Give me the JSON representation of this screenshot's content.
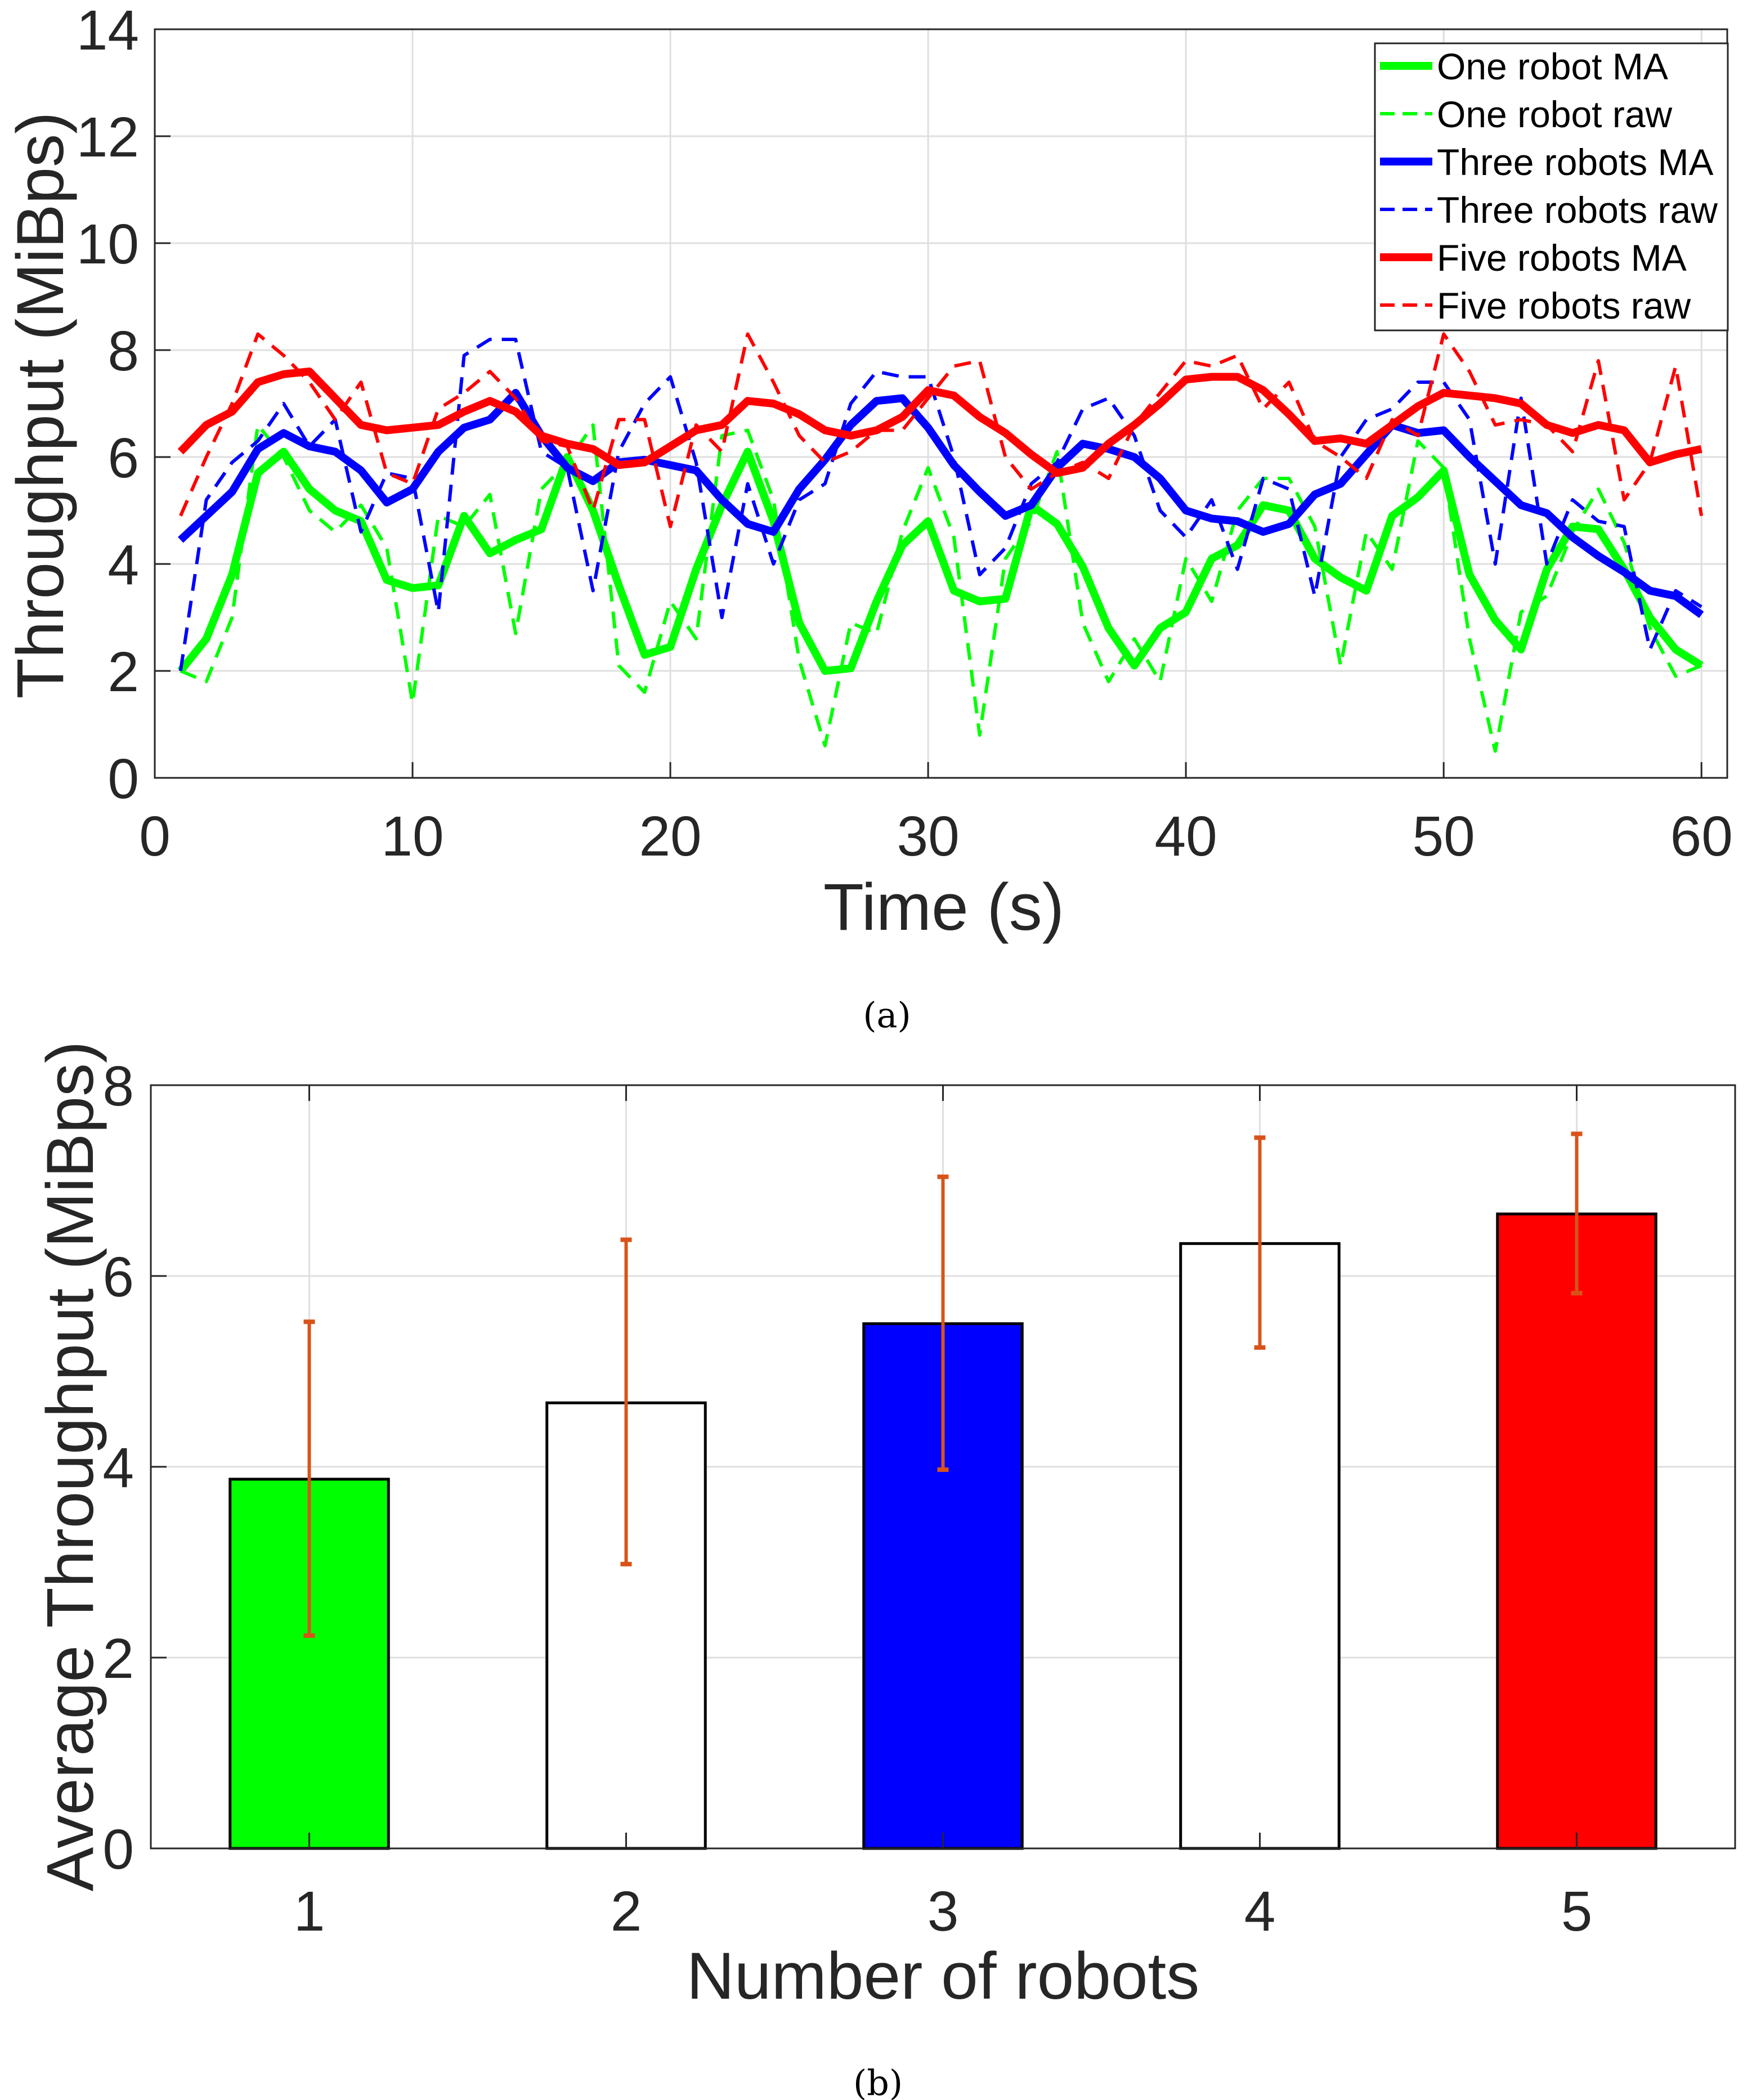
{
  "captions": {
    "a": "(a)",
    "b": "(b)"
  },
  "colors": {
    "green": "#00FF00",
    "blue": "#0000FF",
    "red": "#FF0000",
    "errorbar": "#D95319",
    "grid": "#DFDFDF",
    "axis": "#262626"
  },
  "chart_data": [
    {
      "type": "line",
      "title": "",
      "xlabel": "Time (s)",
      "ylabel": "Throughput (MiBps)",
      "xlim": [
        0,
        61
      ],
      "ylim": [
        0,
        14
      ],
      "xticks": [
        "0",
        "10",
        "20",
        "30",
        "40",
        "50",
        "60"
      ],
      "yticks": [
        "0",
        "2",
        "4",
        "6",
        "8",
        "10",
        "12",
        "14"
      ],
      "grid": true,
      "legend_position": "top-right",
      "x": [
        1,
        2,
        3,
        4,
        5,
        6,
        7,
        8,
        9,
        10,
        11,
        12,
        13,
        14,
        15,
        16,
        17,
        18,
        19,
        20,
        21,
        22,
        23,
        24,
        25,
        26,
        27,
        28,
        29,
        30,
        31,
        32,
        33,
        34,
        35,
        36,
        37,
        38,
        39,
        40,
        41,
        42,
        43,
        44,
        45,
        46,
        47,
        48,
        49,
        50,
        51,
        52,
        53,
        54,
        55,
        56,
        57,
        58,
        59,
        60
      ],
      "series": [
        {
          "name": "One robot MA",
          "color": "#00FF00",
          "style": "solid",
          "values": [
            2.0,
            2.6,
            3.8,
            5.7,
            6.1,
            5.4,
            5.0,
            4.8,
            3.7,
            3.55,
            3.6,
            4.9,
            4.2,
            4.45,
            4.65,
            6.0,
            5.0,
            3.6,
            2.3,
            2.45,
            3.9,
            5.1,
            6.1,
            4.8,
            2.9,
            2.0,
            2.05,
            3.3,
            4.35,
            4.8,
            3.5,
            3.3,
            3.35,
            5.1,
            4.75,
            3.95,
            2.8,
            2.1,
            2.8,
            3.1,
            4.1,
            4.35,
            5.1,
            5.0,
            4.1,
            3.75,
            3.5,
            4.9,
            5.25,
            5.75,
            3.8,
            2.95,
            2.4,
            3.9,
            4.7,
            4.65,
            3.9,
            3.0,
            2.4,
            2.1
          ]
        },
        {
          "name": "One robot raw",
          "color": "#00FF00",
          "style": "dashed",
          "values": [
            2.0,
            1.8,
            3.0,
            6.6,
            6.0,
            5.0,
            4.6,
            5.1,
            4.3,
            1.4,
            4.9,
            4.7,
            5.3,
            2.7,
            5.4,
            5.9,
            6.6,
            2.1,
            1.6,
            3.3,
            2.6,
            6.4,
            6.5,
            5.2,
            2.2,
            0.6,
            2.9,
            2.7,
            4.6,
            5.8,
            4.5,
            0.8,
            4.1,
            4.8,
            6.1,
            2.9,
            1.8,
            2.6,
            1.8,
            4.1,
            3.3,
            5.0,
            5.6,
            5.6,
            4.7,
            2.1,
            4.6,
            3.9,
            6.3,
            5.8,
            2.6,
            0.5,
            3.1,
            3.4,
            4.6,
            5.4,
            4.4,
            2.8,
            1.9,
            2.1
          ]
        },
        {
          "name": "Three robots MA",
          "color": "#0000FF",
          "style": "solid",
          "values": [
            4.45,
            4.9,
            5.35,
            6.15,
            6.45,
            6.2,
            6.1,
            5.75,
            5.15,
            5.4,
            6.1,
            6.55,
            6.7,
            7.2,
            6.4,
            5.8,
            5.55,
            5.9,
            5.95,
            5.85,
            5.75,
            5.2,
            4.75,
            4.6,
            5.4,
            5.95,
            6.6,
            7.05,
            7.1,
            6.55,
            5.85,
            5.35,
            4.9,
            5.1,
            5.8,
            6.25,
            6.15,
            6.0,
            5.6,
            5.0,
            4.85,
            4.8,
            4.6,
            4.75,
            5.3,
            5.5,
            6.05,
            6.6,
            6.45,
            6.5,
            6.0,
            5.55,
            5.1,
            4.95,
            4.5,
            4.15,
            3.85,
            3.5,
            3.4,
            3.05
          ]
        },
        {
          "name": "Three robots raw",
          "color": "#0000FF",
          "style": "dashed",
          "values": [
            2.0,
            5.2,
            5.9,
            6.3,
            7.0,
            6.2,
            6.7,
            4.6,
            5.7,
            5.6,
            3.1,
            7.9,
            8.2,
            8.2,
            6.1,
            5.8,
            3.5,
            6.1,
            7.0,
            7.5,
            5.9,
            3.0,
            5.5,
            4.0,
            5.2,
            5.5,
            7.0,
            7.6,
            7.5,
            7.5,
            6.0,
            3.8,
            4.3,
            5.5,
            5.9,
            6.9,
            7.1,
            6.4,
            5.0,
            4.5,
            5.2,
            3.9,
            5.6,
            5.4,
            3.4,
            6.0,
            6.7,
            6.9,
            7.4,
            7.4,
            6.7,
            4.0,
            7.1,
            4.0,
            5.2,
            4.8,
            4.7,
            2.4,
            3.5,
            3.2
          ]
        },
        {
          "name": "Five robots MA",
          "color": "#FF0000",
          "style": "solid",
          "values": [
            6.1,
            6.6,
            6.85,
            7.4,
            7.55,
            7.6,
            7.1,
            6.6,
            6.5,
            6.55,
            6.6,
            6.85,
            7.05,
            6.85,
            6.4,
            6.25,
            6.15,
            5.85,
            5.9,
            6.2,
            6.5,
            6.6,
            7.05,
            7.0,
            6.8,
            6.5,
            6.4,
            6.5,
            6.75,
            7.25,
            7.15,
            6.75,
            6.45,
            6.05,
            5.7,
            5.8,
            6.25,
            6.6,
            7.0,
            7.45,
            7.5,
            7.5,
            7.25,
            6.8,
            6.3,
            6.35,
            6.25,
            6.6,
            6.95,
            7.2,
            7.15,
            7.1,
            7.0,
            6.6,
            6.45,
            6.6,
            6.5,
            5.9,
            6.05,
            6.15
          ]
        },
        {
          "name": "Five robots raw",
          "color": "#FF0000",
          "style": "dashed",
          "values": [
            4.9,
            6.0,
            7.0,
            8.3,
            7.9,
            7.4,
            6.7,
            7.4,
            5.7,
            5.5,
            6.9,
            7.2,
            7.6,
            7.1,
            6.3,
            6.2,
            5.0,
            6.7,
            6.7,
            4.7,
            6.6,
            6.1,
            8.3,
            7.4,
            6.4,
            5.9,
            6.1,
            6.5,
            6.5,
            7.1,
            7.7,
            7.8,
            6.0,
            5.4,
            5.7,
            5.9,
            5.6,
            6.6,
            7.2,
            7.8,
            7.7,
            7.9,
            6.9,
            7.4,
            6.3,
            6.0,
            5.6,
            6.7,
            6.4,
            8.3,
            7.6,
            6.6,
            6.7,
            6.6,
            6.1,
            7.8,
            5.2,
            5.9,
            7.7,
            4.9
          ]
        }
      ]
    },
    {
      "type": "bar",
      "title": "",
      "xlabel": "Number of robots",
      "ylabel": "Average Throughput (MiBps)",
      "xlim": [
        0.5,
        5.5
      ],
      "ylim": [
        0,
        8
      ],
      "xticks": [
        "1",
        "2",
        "3",
        "4",
        "5"
      ],
      "yticks": [
        "0",
        "2",
        "4",
        "6",
        "8"
      ],
      "grid": true,
      "categories": [
        1,
        2,
        3,
        4,
        5
      ],
      "values": [
        3.87,
        4.67,
        5.5,
        6.34,
        6.65
      ],
      "error_low": [
        2.23,
        2.98,
        3.97,
        5.25,
        5.82
      ],
      "error_high": [
        5.52,
        6.38,
        7.04,
        7.45,
        7.49
      ],
      "bar_colors": [
        "#00FF00",
        "#FFFFFF",
        "#0000FF",
        "#FFFFFF",
        "#FF0000"
      ]
    }
  ]
}
